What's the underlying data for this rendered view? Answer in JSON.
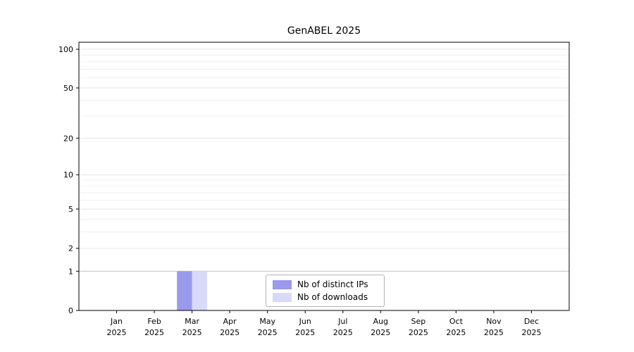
{
  "title": "GenABEL 2025",
  "chart_data": {
    "type": "bar",
    "title": "GenABEL 2025",
    "year_label": "2025",
    "categories": [
      "Jan",
      "Feb",
      "Mar",
      "Apr",
      "May",
      "Jun",
      "Jul",
      "Aug",
      "Sep",
      "Oct",
      "Nov",
      "Dec"
    ],
    "series": [
      {
        "name": "Nb of distinct IPs",
        "color": "#9999ee",
        "values": [
          0,
          0,
          1,
          0,
          0,
          0,
          0,
          0,
          0,
          0,
          0,
          0
        ]
      },
      {
        "name": "Nb of downloads",
        "color": "#d9d9f8",
        "values": [
          0,
          0,
          1,
          0,
          0,
          0,
          0,
          0,
          0,
          0,
          0,
          0
        ]
      }
    ],
    "y_scale": "log10(value+1)",
    "y_ticks": [
      0,
      1,
      2,
      5,
      10,
      20,
      50,
      100
    ],
    "ylim": [
      0,
      100
    ],
    "grid": true,
    "legend_position": "lower center",
    "colors": {
      "grid_minor": "#efefef",
      "grid_labeled": "#e4e4e4",
      "grid_baseline": "#c2c2c2",
      "axis": "#000000",
      "background": "#ffffff"
    }
  },
  "legend": {
    "items": [
      "Nb of distinct IPs",
      "Nb of downloads"
    ]
  }
}
